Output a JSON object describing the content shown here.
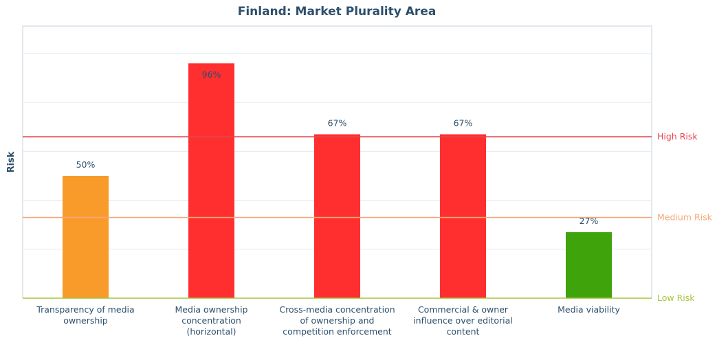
{
  "chart_data": {
    "type": "bar",
    "title": "Finland: Market Plurality Area",
    "ylabel": "Risk",
    "xlabel": "",
    "ylim": [
      0,
      100
    ],
    "grid": true,
    "categories": [
      "Transparency of media ownership",
      "Media ownership concentration (horizontal)",
      "Cross-media concentration of ownership and competition enforcement",
      "Commercial & owner influence over editorial content",
      "Media viability"
    ],
    "values": [
      50,
      96,
      67,
      67,
      27
    ],
    "data_labels": [
      "50%",
      "96%",
      "67%",
      "67%",
      "27%"
    ],
    "bar_colors": [
      "#f99b2a",
      "#ff2f2f",
      "#ff2f2f",
      "#ff2f2f",
      "#3fa30c"
    ],
    "thresholds": [
      {
        "label": "High Risk",
        "value": 66,
        "color": "#e8464c"
      },
      {
        "label": "Medium Risk",
        "value": 33,
        "color": "#f4a878"
      },
      {
        "label": "Low Risk",
        "value": 0,
        "color": "#a6c63a"
      }
    ]
  }
}
